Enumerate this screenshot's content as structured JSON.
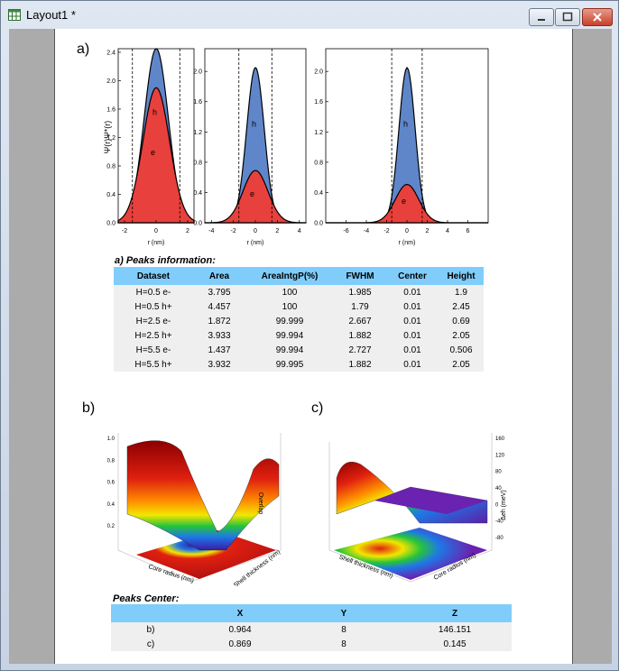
{
  "window": {
    "title": "Layout1 *",
    "icon": "layout-icon"
  },
  "panels": {
    "a_label": "a)",
    "b_label": "b)",
    "c_label": "c)"
  },
  "plots": {
    "ylabel": "Ψ(r)Ψ*(r)",
    "xlabel": "r (nm)",
    "plot1": {
      "yticks": [
        "0.0",
        "0.4",
        "0.8",
        "1.2",
        "1.6",
        "2.0",
        "2.4"
      ],
      "xticks": [
        "-2",
        "0",
        "2"
      ],
      "hole_label": "h",
      "elec_label": "e"
    },
    "plot2": {
      "yticks": [
        "0.0",
        "0.4",
        "0.8",
        "1.2",
        "1.6",
        "2.0"
      ],
      "xticks": [
        "-4",
        "-2",
        "0",
        "2",
        "4"
      ],
      "hole_label": "h",
      "elec_label": "e"
    },
    "plot3": {
      "yticks": [
        "0.0",
        "0.4",
        "0.8",
        "1.2",
        "1.6",
        "2.0"
      ],
      "xticks": [
        "-6",
        "-4",
        "-2",
        "0",
        "2",
        "4",
        "6"
      ],
      "hole_label": "h",
      "elec_label": "e"
    }
  },
  "chart_data": [
    {
      "type": "area",
      "title": "",
      "xlabel": "r (nm)",
      "ylabel": "Ψ(r)Ψ*(r)",
      "xlim": [
        -2.4,
        2.4
      ],
      "ylim": [
        0,
        2.45
      ],
      "series": [
        {
          "name": "h+ (H=0.5)",
          "center": 0.01,
          "height": 2.45,
          "fwhm": 1.79
        },
        {
          "name": "e- (H=0.5)",
          "center": 0.01,
          "height": 1.9,
          "fwhm": 1.985
        }
      ],
      "dashed_lines_x": [
        -1.5,
        1.5
      ]
    },
    {
      "type": "area",
      "title": "",
      "xlabel": "r (nm)",
      "ylabel": "Ψ(r)Ψ*(r)",
      "xlim": [
        -4.6,
        4.6
      ],
      "ylim": [
        0,
        2.3
      ],
      "series": [
        {
          "name": "h+ (H=2.5)",
          "center": 0.01,
          "height": 2.05,
          "fwhm": 1.882
        },
        {
          "name": "e- (H=2.5)",
          "center": 0.01,
          "height": 0.69,
          "fwhm": 2.667
        }
      ],
      "dashed_lines_x": [
        -1.5,
        1.5
      ]
    },
    {
      "type": "area",
      "title": "",
      "xlabel": "r (nm)",
      "ylabel": "Ψ(r)Ψ*(r)",
      "xlim": [
        -8,
        8
      ],
      "ylim": [
        0,
        2.3
      ],
      "series": [
        {
          "name": "h+ (H=5.5)",
          "center": 0.01,
          "height": 2.05,
          "fwhm": 1.882
        },
        {
          "name": "e- (H=5.5)",
          "center": 0.01,
          "height": 0.506,
          "fwhm": 2.727
        }
      ],
      "dashed_lines_x": [
        -1.5,
        1.5
      ]
    }
  ],
  "peaks_info": {
    "caption": "a) Peaks information:",
    "headers": [
      "Dataset",
      "Area",
      "AreaIntgP(%)",
      "FWHM",
      "Center",
      "Height"
    ],
    "rows": [
      [
        "H=0.5 e-",
        "3.795",
        "100",
        "1.985",
        "0.01",
        "1.9"
      ],
      [
        "H=0.5 h+",
        "4.457",
        "100",
        "1.79",
        "0.01",
        "2.45"
      ],
      [
        "H=2.5 e-",
        "1.872",
        "99.999",
        "2.667",
        "0.01",
        "0.69"
      ],
      [
        "H=2.5 h+",
        "3.933",
        "99.994",
        "1.882",
        "0.01",
        "2.05"
      ],
      [
        "H=5.5 e-",
        "1.437",
        "99.994",
        "2.727",
        "0.01",
        "0.506"
      ],
      [
        "H=5.5 h+",
        "3.932",
        "99.995",
        "1.882",
        "0.01",
        "2.05"
      ]
    ]
  },
  "surface_b": {
    "zlabel": "Overlap",
    "xlabel": "Core radius (nm)",
    "ylabel": "Shell thickness (nm)",
    "zticks": [
      "1.0",
      "0.8",
      "0.6",
      "0.4",
      "0.2"
    ]
  },
  "surface_c": {
    "zlabel": "Δeh (meV)",
    "xlabel": "Core radius (nm)",
    "ylabel": "Shell thickness (nm)",
    "zticks": [
      "160",
      "120",
      "80",
      "40",
      "0",
      "-40",
      "-80"
    ]
  },
  "peaks_center": {
    "caption": "Peaks Center:",
    "headers": [
      "",
      "X",
      "Y",
      "Z"
    ],
    "rows": [
      [
        "b)",
        "0.964",
        "8",
        "146.151"
      ],
      [
        "c)",
        "0.869",
        "8",
        "0.145"
      ]
    ]
  }
}
